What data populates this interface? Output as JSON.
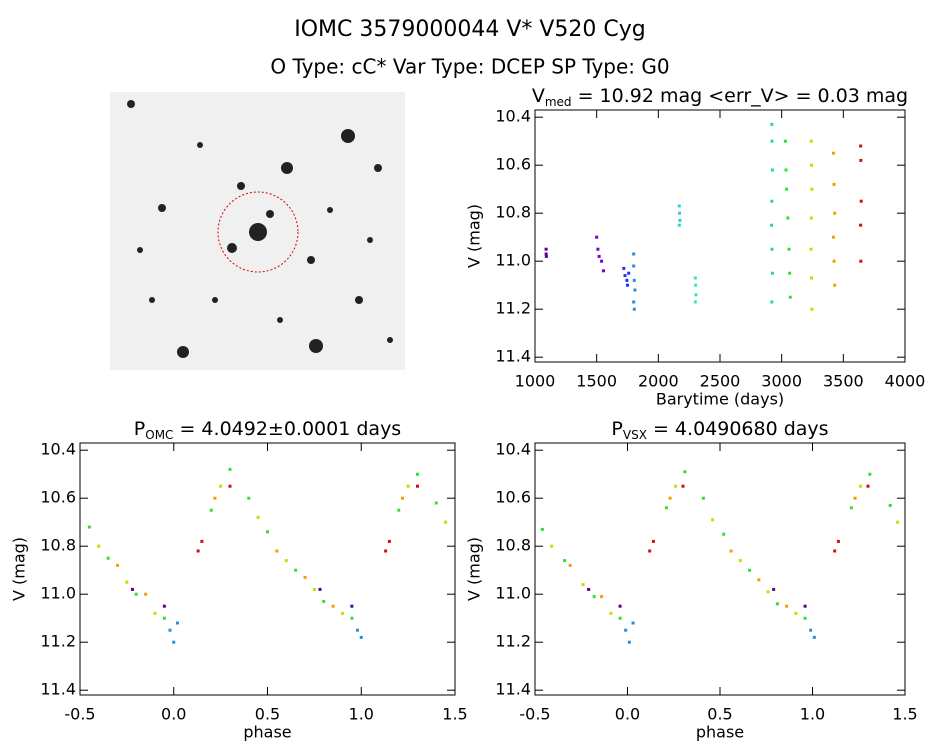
{
  "header": {
    "title": "IOMC 3579000044    V* V520 Cyg",
    "subtitle": "O Type: cC*  Var Type: DCEP  SP Type: G0"
  },
  "chart_data": [
    {
      "type": "scatter",
      "title": {
        "main": "V",
        "sub": "med",
        "rest": " = 10.92 mag <err_V> = 0.03 mag"
      },
      "x_label": "Barytime (days)",
      "y_label": "V (mag)",
      "xlim": [
        1000,
        4000
      ],
      "xticks": [
        1000,
        1500,
        2000,
        2500,
        3000,
        3500,
        4000
      ],
      "ylim": [
        11.42,
        10.37
      ],
      "yticks": [
        10.4,
        10.6,
        10.8,
        {
          "value": 11,
          "label": "11.0"
        },
        11.2,
        11.4
      ],
      "series": [
        {
          "color": "#5a0090",
          "x": [
            1090,
            1090,
            1092
          ],
          "y": [
            10.95,
            10.97,
            10.98
          ]
        },
        {
          "color": "#7a00c8",
          "x": [
            1500,
            1510,
            1520,
            1540,
            1555
          ],
          "y": [
            10.9,
            10.95,
            10.98,
            11.0,
            11.04
          ]
        },
        {
          "color": "#2030ff",
          "x": [
            1720,
            1730,
            1745,
            1760,
            1750
          ],
          "y": [
            11.03,
            11.06,
            11.08,
            11.05,
            11.1
          ]
        },
        {
          "color": "#2090e0",
          "x": [
            1800,
            1800,
            1805,
            1810,
            1800,
            1805
          ],
          "y": [
            10.97,
            11.02,
            11.08,
            11.12,
            11.17,
            11.2
          ]
        },
        {
          "color": "#30d0d0",
          "x": [
            2170,
            2172,
            2175,
            2170
          ],
          "y": [
            10.77,
            10.8,
            10.83,
            10.85
          ]
        },
        {
          "color": "#40e0c0",
          "x": [
            2300,
            2302,
            2305,
            2300
          ],
          "y": [
            11.07,
            11.1,
            11.14,
            11.17
          ]
        },
        {
          "color": "#20e080",
          "x": [
            2920,
            2922,
            2925,
            2920,
            2918,
            2922,
            2925,
            2920
          ],
          "y": [
            10.43,
            10.5,
            10.62,
            10.75,
            10.85,
            10.95,
            11.05,
            11.17
          ]
        },
        {
          "color": "#30e030",
          "x": [
            3030,
            3035,
            3040,
            3050,
            3060,
            3065,
            3070
          ],
          "y": [
            10.5,
            10.62,
            10.7,
            10.82,
            10.95,
            11.05,
            11.15
          ]
        },
        {
          "color": "#c0e000",
          "x": [
            3240,
            3242,
            3245,
            3240,
            3238,
            3242,
            3245
          ],
          "y": [
            10.5,
            10.6,
            10.7,
            10.82,
            10.95,
            11.07,
            11.2
          ]
        },
        {
          "color": "#f0a000",
          "x": [
            3420,
            3425,
            3430,
            3420,
            3425,
            3430
          ],
          "y": [
            10.55,
            10.68,
            10.8,
            10.9,
            11.0,
            11.1
          ]
        },
        {
          "color": "#d01010",
          "x": [
            3640,
            3642,
            3645,
            3640,
            3642
          ],
          "y": [
            10.52,
            10.58,
            10.75,
            10.85,
            11.0
          ]
        }
      ]
    },
    {
      "type": "scatter",
      "title": {
        "main": "P",
        "sub": "OMC",
        "rest": " = 4.0492±0.0001 days"
      },
      "x_label": "phase",
      "y_label": "V (mag)",
      "xlim": [
        -0.5,
        1.5
      ],
      "xticks": [
        -0.5,
        {
          "value": 0,
          "label": "0.0"
        },
        0.5,
        {
          "value": 1,
          "label": "1.0"
        },
        1.5
      ],
      "ylim": [
        11.42,
        10.37
      ],
      "yticks": [
        10.4,
        10.6,
        10.8,
        {
          "value": 11,
          "label": "11.0"
        },
        11.2,
        11.4
      ],
      "series": [
        {
          "color": "#30e030",
          "x": [
            -0.45,
            -0.35,
            -0.2,
            -0.05,
            0.2,
            0.3,
            0.4,
            0.5,
            0.65,
            0.8,
            0.95,
            1.2,
            1.3,
            1.4
          ],
          "y": [
            10.72,
            10.85,
            11.0,
            11.1,
            10.65,
            10.48,
            10.6,
            10.74,
            10.9,
            11.03,
            11.1,
            10.65,
            10.5,
            10.62
          ]
        },
        {
          "color": "#c0e000",
          "x": [
            -0.4,
            -0.25,
            -0.1,
            0.25,
            0.45,
            0.6,
            0.75,
            0.9,
            1.25,
            1.45
          ],
          "y": [
            10.8,
            10.95,
            11.08,
            10.55,
            10.68,
            10.86,
            10.98,
            11.08,
            10.55,
            10.7
          ]
        },
        {
          "color": "#f0a000",
          "x": [
            -0.3,
            -0.15,
            0.22,
            0.55,
            0.7,
            0.85,
            1.22
          ],
          "y": [
            10.88,
            11.0,
            10.6,
            10.82,
            10.93,
            11.05,
            10.6
          ]
        },
        {
          "color": "#2090e0",
          "x": [
            -0.02,
            0.0,
            0.02,
            0.98,
            1.0
          ],
          "y": [
            11.15,
            11.2,
            11.12,
            11.15,
            11.18
          ]
        },
        {
          "color": "#d01010",
          "x": [
            0.15,
            0.13,
            0.3,
            1.15,
            1.13,
            1.3
          ],
          "y": [
            10.78,
            10.82,
            10.55,
            10.78,
            10.82,
            10.55
          ]
        },
        {
          "color": "#5a0090",
          "x": [
            -0.22,
            -0.05,
            0.78,
            0.95
          ],
          "y": [
            10.98,
            11.05,
            10.98,
            11.05
          ]
        }
      ]
    },
    {
      "type": "scatter",
      "title": {
        "main": "P",
        "sub": "VSX",
        "rest": " = 4.0490680 days"
      },
      "x_label": "phase",
      "y_label": "V (mag)",
      "xlim": [
        -0.5,
        1.5
      ],
      "xticks": [
        -0.5,
        {
          "value": 0,
          "label": "0.0"
        },
        0.5,
        {
          "value": 1,
          "label": "1.0"
        },
        1.5
      ],
      "ylim": [
        11.42,
        10.37
      ],
      "yticks": [
        10.4,
        10.6,
        10.8,
        {
          "value": 11,
          "label": "11.0"
        },
        11.2,
        11.4
      ],
      "series": [
        {
          "color": "#30e030",
          "x": [
            -0.46,
            -0.34,
            -0.18,
            -0.04,
            0.21,
            0.31,
            0.41,
            0.52,
            0.66,
            0.81,
            0.96,
            1.21,
            1.31,
            1.42
          ],
          "y": [
            10.73,
            10.86,
            11.01,
            11.1,
            10.64,
            10.49,
            10.6,
            10.75,
            10.9,
            11.04,
            11.1,
            10.64,
            10.5,
            10.63
          ]
        },
        {
          "color": "#c0e000",
          "x": [
            -0.41,
            -0.24,
            -0.09,
            0.26,
            0.46,
            0.61,
            0.76,
            0.91,
            1.26,
            1.46
          ],
          "y": [
            10.8,
            10.96,
            11.08,
            10.55,
            10.69,
            10.86,
            10.99,
            11.08,
            10.55,
            10.7
          ]
        },
        {
          "color": "#f0a000",
          "x": [
            -0.31,
            -0.14,
            0.23,
            0.56,
            0.71,
            0.86,
            1.23
          ],
          "y": [
            10.88,
            11.01,
            10.6,
            10.82,
            10.94,
            11.05,
            10.6
          ]
        },
        {
          "color": "#2090e0",
          "x": [
            -0.01,
            0.01,
            0.03,
            0.99,
            1.01
          ],
          "y": [
            11.15,
            11.2,
            11.12,
            11.15,
            11.18
          ]
        },
        {
          "color": "#d01010",
          "x": [
            0.14,
            0.12,
            0.3,
            1.14,
            1.12,
            1.3
          ],
          "y": [
            10.78,
            10.82,
            10.55,
            10.78,
            10.82,
            10.55
          ]
        },
        {
          "color": "#5a0090",
          "x": [
            -0.21,
            -0.04,
            0.79,
            0.96
          ],
          "y": [
            10.98,
            11.05,
            10.98,
            11.05
          ]
        }
      ]
    }
  ]
}
